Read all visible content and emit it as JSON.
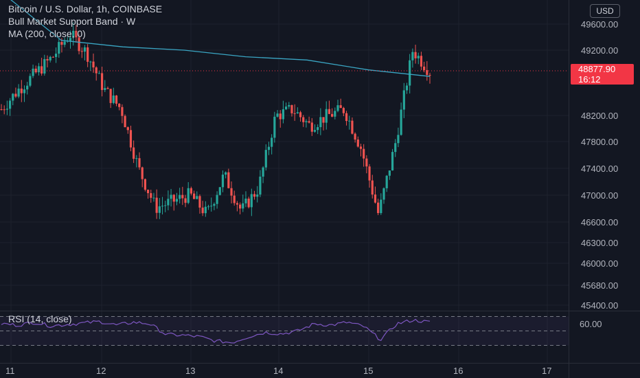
{
  "header": {
    "symbol_line": "Bitcoin / U.S. Dollar, 1h, COINBASE",
    "indicator_1": "Bull Market Support Band · W",
    "indicator_2": "MA (200, close, 0)"
  },
  "currency_button": "USD",
  "last_price": {
    "value": "48877.90",
    "countdown": "16:12"
  },
  "rsi_panel": {
    "title": "RSI (14, close)",
    "level_label": "60.00",
    "upper_band": 70,
    "middle": 50,
    "lower_band": 30
  },
  "colors": {
    "background": "#131722",
    "up": "#26a69a",
    "down": "#ef5350",
    "ma": "#3aa6c4",
    "rsi": "#7e57c2",
    "price_tag": "#f23645"
  },
  "chart_data": {
    "type": "candlestick",
    "price_axis_labels": [
      49600,
      49200,
      48877.9,
      48200,
      47800,
      47400,
      47000,
      46600,
      46300,
      46000,
      45680,
      45400
    ],
    "time_axis_labels": [
      "11",
      "12",
      "13",
      "14",
      "15",
      "16",
      "17"
    ],
    "ohlc_close_approx": [
      48300,
      48600,
      48850,
      49100,
      49450,
      49150,
      48600,
      48300,
      47400,
      46800,
      46900,
      47000,
      46700,
      47300,
      46750,
      47100,
      48200,
      48300,
      48050,
      48200,
      48300,
      47700,
      46700,
      47800,
      49200,
      48877.9
    ],
    "ma200_approx": [
      50100,
      49350,
      49250,
      49200,
      49100,
      49050,
      48900,
      48800
    ],
    "rsi_approx": [
      60,
      58,
      62,
      57,
      59,
      61,
      63,
      58,
      62,
      60,
      45,
      44,
      42,
      36,
      34,
      42,
      48,
      46,
      50,
      60,
      58,
      62,
      56,
      38,
      60,
      65,
      62
    ]
  }
}
